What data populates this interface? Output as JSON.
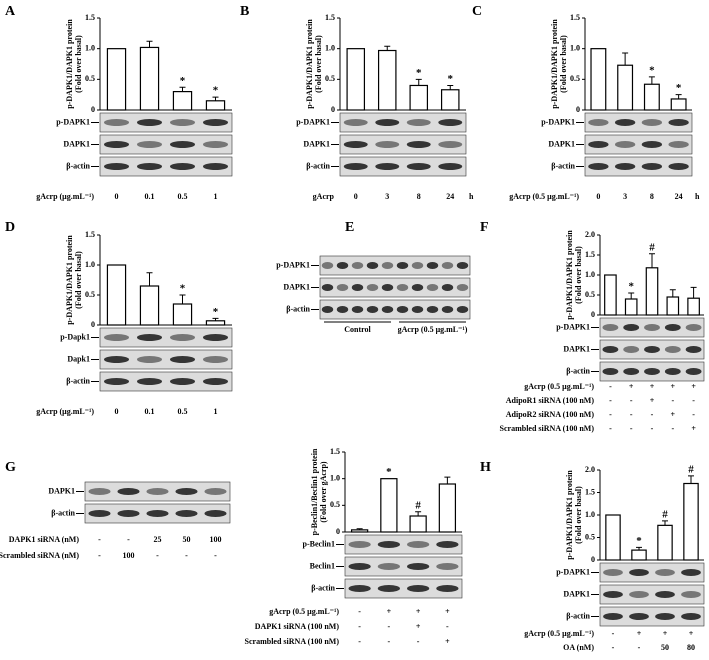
{
  "chart_data": [
    {
      "type": "bar",
      "letter": "A",
      "ylabel": [
        "p-DAPK1/DAPK1 protein",
        "(Fold over basal)"
      ],
      "ylim": [
        0,
        1.5
      ],
      "yticks": [
        0,
        0.5,
        {
          "value": 1,
          "label": "1.0"
        },
        1.5
      ],
      "values": [
        1.0,
        1.02,
        0.3,
        0.15
      ],
      "errors": [
        null,
        0.1,
        0.07,
        0.06
      ],
      "markers": [
        null,
        null,
        "*",
        "*"
      ],
      "color": "#ffffff",
      "blots": [
        "p-DAPK1",
        "DAPK1",
        "β-actin"
      ],
      "conditions": [
        {
          "label": "gAcrp (μg.mL⁻¹)",
          "values": [
            "0",
            "0.1",
            "0.5",
            "1"
          ]
        }
      ]
    },
    {
      "type": "bar",
      "letter": "B",
      "ylabel": [
        "p-DAPK1/DAPK1 protein",
        "(Fold over basal)"
      ],
      "ylim": [
        0,
        1.5
      ],
      "yticks": [
        0,
        0.5,
        {
          "value": 1,
          "label": "1.0"
        },
        1.5
      ],
      "values": [
        1.0,
        0.97,
        0.4,
        0.33
      ],
      "errors": [
        null,
        0.07,
        0.1,
        0.07
      ],
      "markers": [
        null,
        null,
        "*",
        "*"
      ],
      "color": "#ffffff",
      "blots": [
        "p-DAPK1",
        "DAPK1",
        "β-actin"
      ],
      "conditions": [
        {
          "label": "gAcrp",
          "values": [
            "0",
            "3",
            "8",
            "24"
          ]
        }
      ],
      "x_unit": "h"
    },
    {
      "type": "bar",
      "letter": "C",
      "ylabel": [
        "p-DAPK1/DAPK1 protein",
        "(Fold over basal)"
      ],
      "ylim": [
        0,
        1.5
      ],
      "yticks": [
        0,
        0.5,
        {
          "value": 1,
          "label": "1.0"
        },
        1.5
      ],
      "values": [
        1.0,
        0.73,
        0.42,
        0.18
      ],
      "errors": [
        null,
        0.2,
        0.12,
        0.07
      ],
      "markers": [
        null,
        null,
        "*",
        "*"
      ],
      "color": "#ffffff",
      "blots": [
        "p-DAPK1",
        "DAPK1",
        "β-actin"
      ],
      "conditions": [
        {
          "label": "gAcrp (0.5 μg.mL⁻¹)",
          "values": [
            "0",
            "3",
            "8",
            "24"
          ]
        }
      ],
      "x_unit": "h"
    },
    {
      "type": "bar",
      "letter": "D",
      "ylabel": [
        "p-DAPK1/DAPK1 protein",
        "(Fold over basal)"
      ],
      "ylim": [
        0,
        1.5
      ],
      "yticks": [
        0,
        0.5,
        {
          "value": 1,
          "label": "1.0"
        },
        1.5
      ],
      "values": [
        1.0,
        0.65,
        0.35,
        0.07
      ],
      "errors": [
        null,
        0.22,
        0.15,
        0.04
      ],
      "markers": [
        null,
        null,
        "*",
        "*"
      ],
      "color": "#ffffff",
      "blots": [
        "p-Dapk1",
        "Dapk1",
        "β-actin"
      ],
      "conditions": [
        {
          "label": "gAcrp (μg.mL⁻¹)",
          "values": [
            "0",
            "0.1",
            "0.5",
            "1"
          ]
        }
      ]
    },
    {
      "type": "blot",
      "letter": "E",
      "blots": [
        "p-DAPK1",
        "DAPK1",
        "β-actin"
      ],
      "groups": [
        "Control",
        "gAcrp (0.5 μg.mL⁻¹)"
      ]
    },
    {
      "type": "bar",
      "letter": "F",
      "ylabel": [
        "p-DAPK1/DAPK1 protein",
        "(Fold over basal)"
      ],
      "ylim": [
        0,
        2
      ],
      "yticks": [
        0,
        0.5,
        {
          "value": 1,
          "label": "1.0"
        },
        1.5,
        {
          "value": 2,
          "label": "2.0"
        }
      ],
      "values": [
        1.0,
        0.4,
        1.18,
        0.45,
        0.42
      ],
      "errors": [
        null,
        0.15,
        0.35,
        0.18,
        0.27
      ],
      "markers": [
        null,
        "*",
        "#",
        null,
        null
      ],
      "color": "#ffffff",
      "blots": [
        "p-DAPK1",
        "DAPK1",
        "β-actin"
      ],
      "conditions": [
        {
          "label": "gAcrp (0.5 μg.mL⁻¹)",
          "values": [
            "-",
            "+",
            "+",
            "+",
            "+"
          ]
        },
        {
          "label": "AdipoR1 siRNA (100 nM)",
          "values": [
            "-",
            "-",
            "+",
            "-",
            "-"
          ]
        },
        {
          "label": "AdipoR2 siRNA (100 nM)",
          "values": [
            "-",
            "-",
            "-",
            "+",
            "-"
          ]
        },
        {
          "label": "Scrambled siRNA (100 nM)",
          "values": [
            "-",
            "-",
            "-",
            "-",
            "+"
          ]
        }
      ]
    },
    {
      "type": "blot",
      "letter": "G",
      "blots": [
        "DAPK1",
        "β-actin"
      ],
      "conditions": [
        {
          "label": "DAPK1 siRNA (nM)",
          "values": [
            "-",
            "-",
            "25",
            "50",
            "100"
          ]
        },
        {
          "label": "Scrambled siRNA (nM)",
          "values": [
            "-",
            "100",
            "-",
            "-",
            "-"
          ]
        }
      ]
    },
    {
      "type": "bar",
      "ylabel": [
        "p-Beclin1/Beclin1 protein",
        "(Fold over gAcrp)"
      ],
      "ylim": [
        0,
        1.5
      ],
      "yticks": [
        0,
        0.5,
        {
          "value": 1,
          "label": "1.0"
        },
        1.5
      ],
      "values": [
        0.04,
        1.0,
        0.3,
        0.9
      ],
      "errors": [
        0.02,
        null,
        0.08,
        0.13
      ],
      "markers": [
        null,
        "*",
        "#",
        null
      ],
      "color": "#ffffff",
      "blots": [
        "p-Beclin1",
        "Beclin1",
        "β-actin"
      ],
      "conditions": [
        {
          "label": "gAcrp (0.5 μg.mL⁻¹)",
          "values": [
            "-",
            "+",
            "+",
            "+"
          ]
        },
        {
          "label": "DAPK1 siRNA (100 nM)",
          "values": [
            "-",
            "-",
            "+",
            "-"
          ]
        },
        {
          "label": "Scrambled siRNA (100 nM)",
          "values": [
            "-",
            "-",
            "-",
            "+"
          ]
        }
      ]
    },
    {
      "type": "bar",
      "letter": "H",
      "ylabel": [
        "p-DAPK1/DAPK1 protein",
        "(Fold over basal)"
      ],
      "ylim": [
        0,
        2
      ],
      "yticks": [
        0,
        0.5,
        {
          "value": 1,
          "label": "1.0"
        },
        1.5,
        {
          "value": 2,
          "label": "2.0"
        }
      ],
      "values": [
        1.0,
        0.22,
        0.77,
        1.7
      ],
      "errors": [
        null,
        0.06,
        0.1,
        0.17
      ],
      "markers": [
        null,
        "*",
        "#",
        "#"
      ],
      "color": "#ffffff",
      "blots": [
        "p-DAPK1",
        "DAPK1",
        "β-actin"
      ],
      "conditions": [
        {
          "label": "gAcrp (0.5 μg.mL⁻¹)",
          "values": [
            "-",
            "+",
            "+",
            "+"
          ]
        },
        {
          "label": "OA (nM)",
          "values": [
            "-",
            "-",
            "50",
            "80"
          ]
        }
      ]
    }
  ]
}
